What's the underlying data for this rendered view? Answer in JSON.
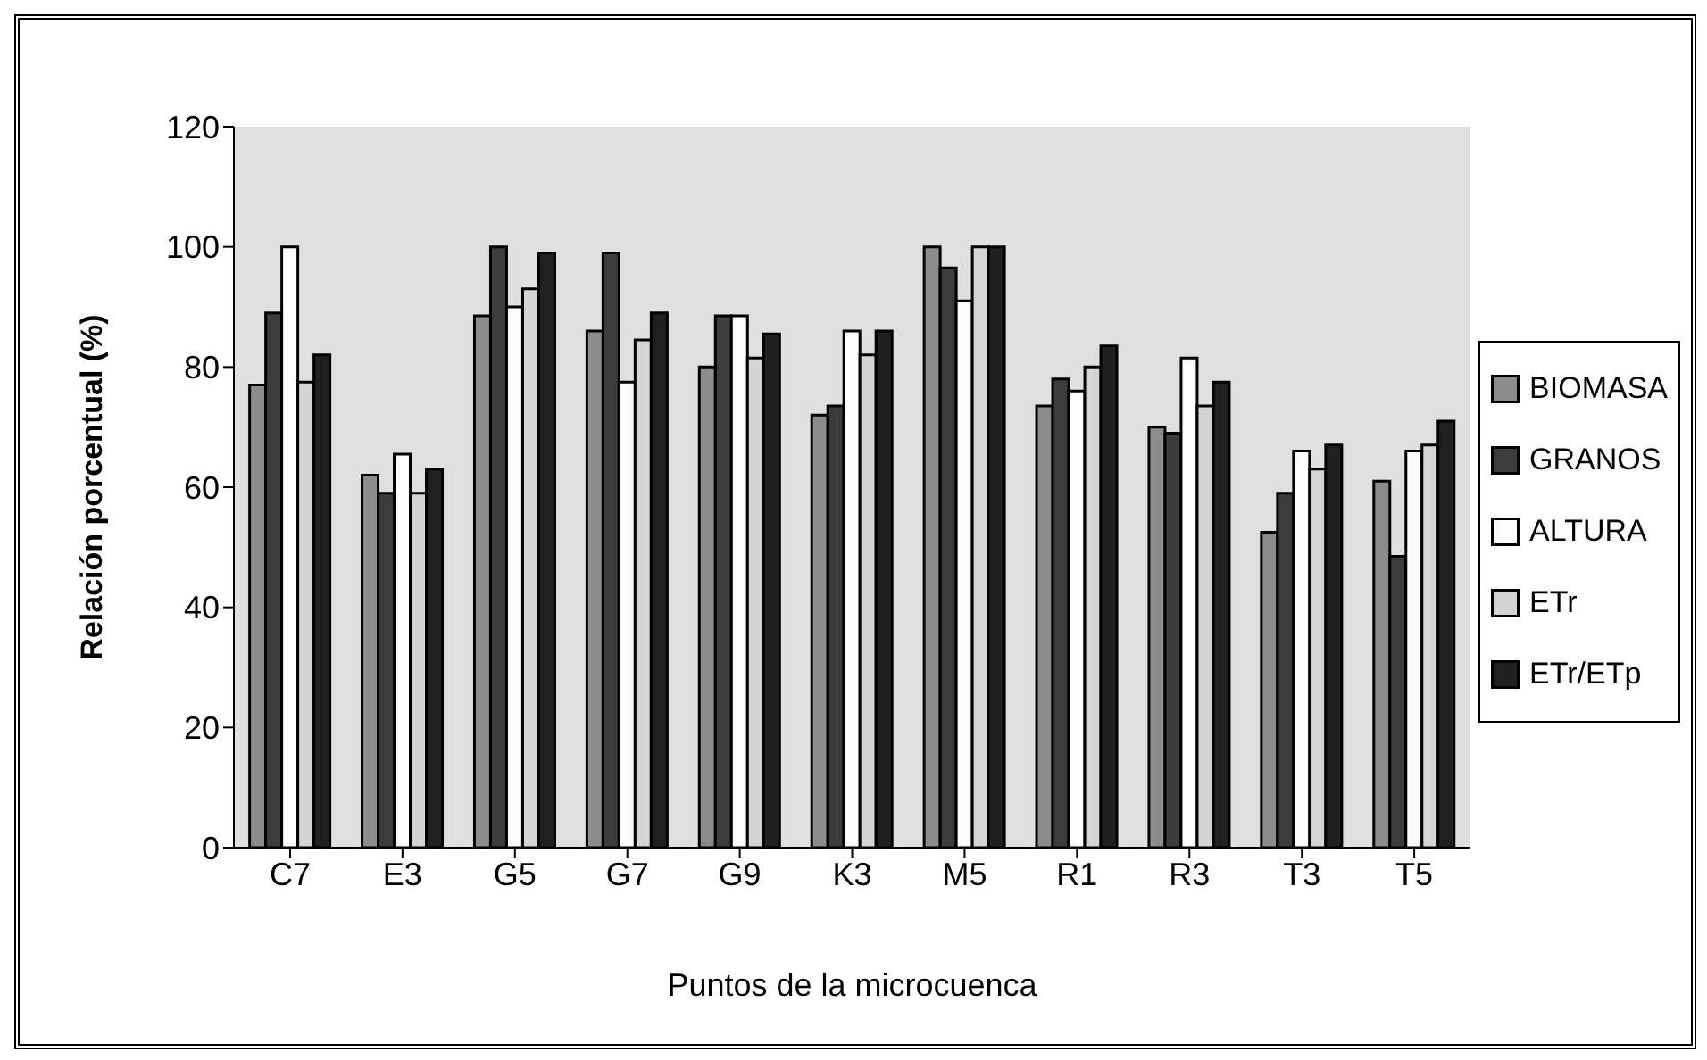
{
  "chart_data": {
    "type": "bar",
    "xlabel": "Puntos de la microcuenca",
    "ylabel": "Relación porcentual (%)",
    "categories": [
      "C7",
      "E3",
      "G5",
      "G7",
      "G9",
      "K3",
      "M5",
      "R1",
      "R3",
      "T3",
      "T5"
    ],
    "series": [
      {
        "name": "BIOMASA",
        "color": "#8c8c8c",
        "values": [
          77,
          62,
          88.5,
          86,
          80,
          72,
          100,
          73.5,
          70,
          52.5,
          61
        ]
      },
      {
        "name": "GRANOS",
        "color": "#3c3c3c",
        "values": [
          89,
          59,
          100,
          99,
          88.5,
          73.5,
          96.5,
          78,
          69,
          59,
          48.5
        ]
      },
      {
        "name": "ALTURA",
        "color": "#fcfcfc",
        "values": [
          100,
          65.5,
          90,
          77.5,
          88.5,
          86,
          91,
          76,
          81.5,
          66,
          66
        ]
      },
      {
        "name": "ETr",
        "color": "#d4d4d4",
        "values": [
          77.5,
          59,
          93,
          84.5,
          81.5,
          82,
          100,
          80,
          73.5,
          63,
          67
        ]
      },
      {
        "name": "ETr/ETp",
        "color": "#202020",
        "values": [
          82,
          63,
          99,
          89,
          85.5,
          86,
          100,
          83.5,
          77.5,
          67,
          71
        ]
      }
    ],
    "ylim": [
      0,
      120
    ],
    "yticks": [
      0,
      20,
      40,
      60,
      80,
      100,
      120
    ],
    "grid": false,
    "legend": "right"
  }
}
